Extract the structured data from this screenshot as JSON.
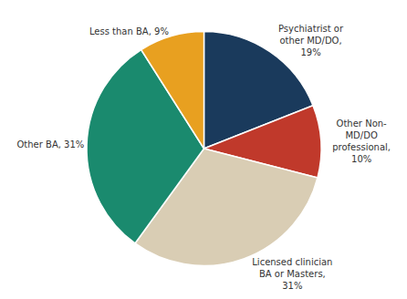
{
  "chart_data": {
    "type": "pie",
    "categories": [
      "Psychiatrist or\nother MD/DO,\n19%",
      "Other Non-\nMD/DO\nprofessional,\n10%",
      "Licensed clinician\nBA or Masters,\n31%",
      "Other BA, 31%",
      "Less than BA, 9%"
    ],
    "values": [
      19,
      10,
      31,
      31,
      9
    ],
    "colors": [
      "#1a3a5c",
      "#c0392b",
      "#d9cdb4",
      "#1a8a6e",
      "#e8a020"
    ]
  }
}
